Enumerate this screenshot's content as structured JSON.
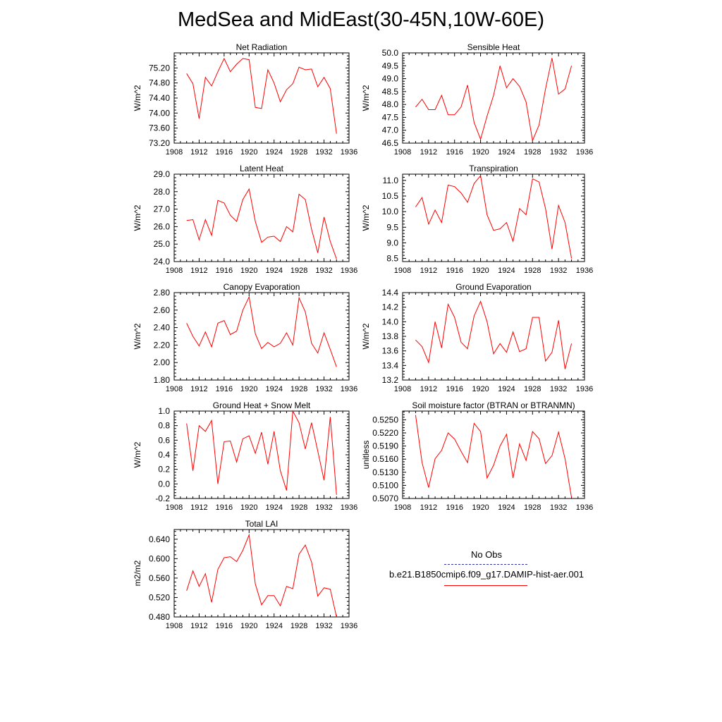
{
  "title": "MedSea and MidEast(30-45N,10W-60E)",
  "line_color": "#ff0000",
  "legend": {
    "items": [
      {
        "label": "No Obs",
        "color": "#3333aa",
        "style": "dashed"
      },
      {
        "label": "b.e21.B1850cmip6.f09_g17.DAMIP-hist-aer.001",
        "color": "#ff0000",
        "style": "solid"
      }
    ]
  },
  "chart_data": [
    {
      "type": "line",
      "title": "Net Radiation",
      "ylabel": "W/m^2",
      "xlim": [
        1908,
        1936
      ],
      "xticks": [
        "1908",
        "1912",
        "1916",
        "1920",
        "1924",
        "1928",
        "1932",
        "1936"
      ],
      "ylim": [
        73.2,
        75.6
      ],
      "yticks": [
        "73.20",
        "73.60",
        "74.00",
        "74.40",
        "74.80",
        "75.20"
      ],
      "x": [
        1910,
        1911,
        1912,
        1913,
        1914,
        1915,
        1916,
        1917,
        1918,
        1919,
        1920,
        1921,
        1922,
        1923,
        1924,
        1925,
        1926,
        1927,
        1928,
        1929,
        1930,
        1931,
        1932,
        1933,
        1934
      ],
      "y": [
        75.05,
        74.78,
        73.85,
        74.95,
        74.72,
        75.1,
        75.45,
        75.1,
        75.3,
        75.45,
        75.42,
        74.15,
        74.12,
        75.15,
        74.8,
        74.3,
        74.62,
        74.78,
        75.22,
        75.15,
        75.17,
        74.7,
        74.95,
        74.65,
        73.45
      ]
    },
    {
      "type": "line",
      "title": "Sensible Heat",
      "ylabel": "W/m^2",
      "xlim": [
        1908,
        1936
      ],
      "xticks": [
        "1908",
        "1912",
        "1916",
        "1920",
        "1924",
        "1928",
        "1932",
        "1936"
      ],
      "ylim": [
        46.5,
        50.0
      ],
      "yticks": [
        "46.5",
        "47.0",
        "47.5",
        "48.0",
        "48.5",
        "49.0",
        "49.5",
        "50.0"
      ],
      "x": [
        1910,
        1911,
        1912,
        1913,
        1914,
        1915,
        1916,
        1917,
        1918,
        1919,
        1920,
        1921,
        1922,
        1923,
        1924,
        1925,
        1926,
        1927,
        1928,
        1929,
        1930,
        1931,
        1932,
        1933,
        1934
      ],
      "y": [
        47.9,
        48.2,
        47.8,
        47.8,
        48.35,
        47.6,
        47.6,
        47.9,
        48.75,
        47.3,
        46.65,
        47.55,
        48.35,
        49.5,
        48.65,
        49.0,
        48.7,
        48.1,
        46.6,
        47.2,
        48.6,
        49.8,
        48.4,
        48.6,
        49.5
      ]
    },
    {
      "type": "line",
      "title": "Latent Heat",
      "ylabel": "W/m^2",
      "xlim": [
        1908,
        1936
      ],
      "xticks": [
        "1908",
        "1912",
        "1916",
        "1920",
        "1924",
        "1928",
        "1932",
        "1936"
      ],
      "ylim": [
        24.0,
        29.0
      ],
      "yticks": [
        "24.0",
        "25.0",
        "26.0",
        "27.0",
        "28.0",
        "29.0"
      ],
      "x": [
        1910,
        1911,
        1912,
        1913,
        1914,
        1915,
        1916,
        1917,
        1918,
        1919,
        1920,
        1921,
        1922,
        1923,
        1924,
        1925,
        1926,
        1927,
        1928,
        1929,
        1930,
        1931,
        1932,
        1933,
        1934
      ],
      "y": [
        26.35,
        26.4,
        25.25,
        26.4,
        25.5,
        27.5,
        27.35,
        26.65,
        26.3,
        27.55,
        28.15,
        26.3,
        25.1,
        25.4,
        25.45,
        25.15,
        26.0,
        25.7,
        27.85,
        27.55,
        25.85,
        24.5,
        26.55,
        25.15,
        24.15
      ]
    },
    {
      "type": "line",
      "title": "Transpiration",
      "ylabel": "W/m^2",
      "xlim": [
        1908,
        1936
      ],
      "xticks": [
        "1908",
        "1912",
        "1916",
        "1920",
        "1924",
        "1928",
        "1932",
        "1936"
      ],
      "ylim": [
        8.4,
        11.2
      ],
      "yticks": [
        "8.5",
        "9.0",
        "9.5",
        "10.0",
        "10.5",
        "11.0"
      ],
      "x": [
        1910,
        1911,
        1912,
        1913,
        1914,
        1915,
        1916,
        1917,
        1918,
        1919,
        1920,
        1921,
        1922,
        1923,
        1924,
        1925,
        1926,
        1927,
        1928,
        1929,
        1930,
        1931,
        1932,
        1933,
        1934
      ],
      "y": [
        10.15,
        10.45,
        9.6,
        10.05,
        9.65,
        10.85,
        10.8,
        10.6,
        10.3,
        10.9,
        11.15,
        9.9,
        9.4,
        9.45,
        9.65,
        9.05,
        10.1,
        9.9,
        11.05,
        10.95,
        10.1,
        8.8,
        10.2,
        9.65,
        8.5
      ]
    },
    {
      "type": "line",
      "title": "Canopy Evaporation",
      "ylabel": "W/m^2",
      "xlim": [
        1908,
        1936
      ],
      "xticks": [
        "1908",
        "1912",
        "1916",
        "1920",
        "1924",
        "1928",
        "1932",
        "1936"
      ],
      "ylim": [
        1.8,
        2.8
      ],
      "yticks": [
        "1.80",
        "2.00",
        "2.20",
        "2.40",
        "2.60",
        "2.80"
      ],
      "x": [
        1910,
        1911,
        1912,
        1913,
        1914,
        1915,
        1916,
        1917,
        1918,
        1919,
        1920,
        1921,
        1922,
        1923,
        1924,
        1925,
        1926,
        1927,
        1928,
        1929,
        1930,
        1931,
        1932,
        1933,
        1934
      ],
      "y": [
        2.45,
        2.3,
        2.19,
        2.35,
        2.18,
        2.45,
        2.48,
        2.32,
        2.36,
        2.6,
        2.75,
        2.33,
        2.16,
        2.23,
        2.18,
        2.22,
        2.34,
        2.2,
        2.74,
        2.58,
        2.22,
        2.11,
        2.34,
        2.15,
        1.95
      ]
    },
    {
      "type": "line",
      "title": "Ground Evaporation",
      "ylabel": "W/m^2",
      "xlim": [
        1908,
        1936
      ],
      "xticks": [
        "1908",
        "1912",
        "1916",
        "1920",
        "1924",
        "1928",
        "1932",
        "1936"
      ],
      "ylim": [
        13.2,
        14.4
      ],
      "yticks": [
        "13.2",
        "13.4",
        "13.6",
        "13.8",
        "14.0",
        "14.2",
        "14.4"
      ],
      "x": [
        1910,
        1911,
        1912,
        1913,
        1914,
        1915,
        1916,
        1917,
        1918,
        1919,
        1920,
        1921,
        1922,
        1923,
        1924,
        1925,
        1926,
        1927,
        1928,
        1929,
        1930,
        1931,
        1932,
        1933,
        1934
      ],
      "y": [
        13.75,
        13.66,
        13.44,
        14.0,
        13.64,
        14.24,
        14.06,
        13.72,
        13.63,
        14.08,
        14.28,
        14.0,
        13.56,
        13.7,
        13.58,
        13.86,
        13.59,
        13.63,
        14.06,
        14.06,
        13.46,
        13.58,
        14.02,
        13.35,
        13.7
      ]
    },
    {
      "type": "line",
      "title": "Ground Heat + Snow Melt",
      "ylabel": "W/m^2",
      "xlim": [
        1908,
        1936
      ],
      "xticks": [
        "1908",
        "1912",
        "1916",
        "1920",
        "1924",
        "1928",
        "1932",
        "1936"
      ],
      "ylim": [
        -0.2,
        1.0
      ],
      "yticks": [
        "-0.2",
        "0.0",
        "0.2",
        "0.4",
        "0.6",
        "0.8",
        "1.0"
      ],
      "x": [
        1910,
        1911,
        1912,
        1913,
        1914,
        1915,
        1916,
        1917,
        1918,
        1919,
        1920,
        1921,
        1922,
        1923,
        1924,
        1925,
        1926,
        1927,
        1928,
        1929,
        1930,
        1931,
        1932,
        1933,
        1934
      ],
      "y": [
        0.83,
        0.18,
        0.8,
        0.72,
        0.87,
        0.0,
        0.58,
        0.59,
        0.3,
        0.62,
        0.66,
        0.42,
        0.71,
        0.27,
        0.72,
        0.18,
        -0.09,
        1.0,
        0.84,
        0.48,
        0.84,
        0.45,
        0.05,
        0.92,
        -0.15
      ]
    },
    {
      "type": "line",
      "title": "Soil moisture factor (BTRAN or BTRANMN)",
      "ylabel": "unitless",
      "xlim": [
        1908,
        1936
      ],
      "xticks": [
        "1908",
        "1912",
        "1916",
        "1920",
        "1924",
        "1928",
        "1932",
        "1936"
      ],
      "ylim": [
        0.507,
        0.527
      ],
      "yticks": [
        "0.5070",
        "0.5100",
        "0.5130",
        "0.5160",
        "0.5190",
        "0.5220",
        "0.5250"
      ],
      "x": [
        1910,
        1911,
        1912,
        1913,
        1914,
        1915,
        1916,
        1917,
        1918,
        1919,
        1920,
        1921,
        1922,
        1923,
        1924,
        1925,
        1926,
        1927,
        1928,
        1929,
        1930,
        1931,
        1932,
        1933,
        1934
      ],
      "y": [
        0.5261,
        0.5152,
        0.5095,
        0.5161,
        0.518,
        0.522,
        0.5206,
        0.5178,
        0.5152,
        0.5242,
        0.5223,
        0.5117,
        0.5146,
        0.519,
        0.5217,
        0.5117,
        0.5195,
        0.5157,
        0.5223,
        0.5207,
        0.515,
        0.5168,
        0.5222,
        0.5161,
        0.5072
      ]
    },
    {
      "type": "line",
      "title": "Total LAI",
      "ylabel": "m2/m2",
      "xlim": [
        1908,
        1936
      ],
      "xticks": [
        "1908",
        "1912",
        "1916",
        "1920",
        "1924",
        "1928",
        "1932",
        "1936"
      ],
      "ylim": [
        0.48,
        0.66
      ],
      "yticks": [
        "0.480",
        "0.520",
        "0.560",
        "0.600",
        "0.640"
      ],
      "x": [
        1910,
        1911,
        1912,
        1913,
        1914,
        1915,
        1916,
        1917,
        1918,
        1919,
        1920,
        1921,
        1922,
        1923,
        1924,
        1925,
        1926,
        1927,
        1928,
        1929,
        1930,
        1931,
        1932,
        1933,
        1934
      ],
      "y": [
        0.534,
        0.575,
        0.543,
        0.569,
        0.51,
        0.578,
        0.602,
        0.604,
        0.594,
        0.617,
        0.649,
        0.548,
        0.505,
        0.524,
        0.524,
        0.503,
        0.543,
        0.538,
        0.609,
        0.628,
        0.593,
        0.523,
        0.54,
        0.537,
        0.48
      ]
    }
  ]
}
